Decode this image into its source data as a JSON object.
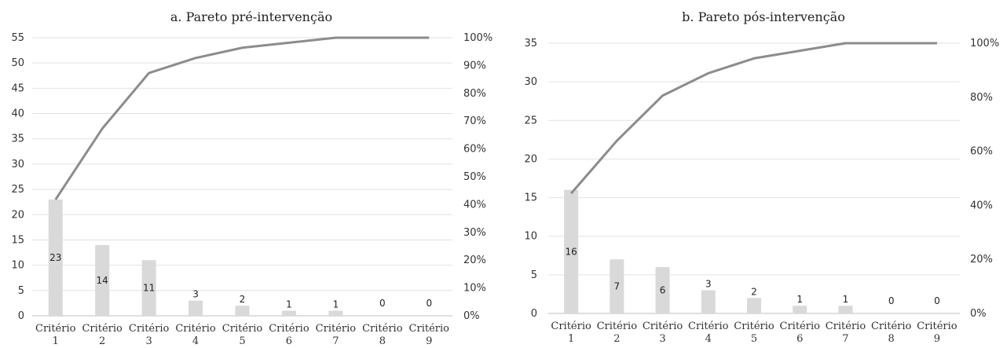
{
  "chart_data": [
    {
      "type": "bar",
      "title": "a. Pareto pré-intervenção",
      "categories": [
        "Critério 1",
        "Critério 2",
        "Critério 3",
        "Critério 4",
        "Critério 5",
        "Critério 6",
        "Critério 7",
        "Critério 8",
        "Critério 9"
      ],
      "category_lines": [
        [
          "Critério",
          "1"
        ],
        [
          "Critério",
          "2"
        ],
        [
          "Critério",
          "3"
        ],
        [
          "Critério",
          "4"
        ],
        [
          "Critério",
          "5"
        ],
        [
          "Critério",
          "6"
        ],
        [
          "Critério",
          "7"
        ],
        [
          "Critério",
          "8"
        ],
        [
          "Critério",
          "9"
        ]
      ],
      "values": [
        23,
        14,
        11,
        3,
        2,
        1,
        1,
        0,
        0
      ],
      "cumulative_percent": [
        41.8,
        67.3,
        87.3,
        92.7,
        96.4,
        98.2,
        100,
        100,
        100
      ],
      "ylim": [
        0,
        55
      ],
      "yticks": [
        "0",
        "5",
        "10",
        "15",
        "20",
        "25",
        "30",
        "35",
        "40",
        "45",
        "50",
        "55"
      ],
      "y2lim": [
        0,
        100
      ],
      "y2ticks": [
        "0%",
        "10%",
        "20%",
        "30%",
        "40%",
        "50%",
        "60%",
        "70%",
        "80%",
        "90%",
        "100%"
      ],
      "grid": true,
      "bar_color": "#d9d9d9",
      "line_color": "#8c8c8c"
    },
    {
      "type": "bar",
      "title": "b. Pareto pós-intervenção",
      "categories": [
        "Critério 1",
        "Critério 2",
        "Critério 3",
        "Critério 4",
        "Critério 5",
        "Critério 6",
        "Critério 7",
        "Critério 8",
        "Critério 9"
      ],
      "category_lines": [
        [
          "Critério",
          "1"
        ],
        [
          "Critério",
          "2"
        ],
        [
          "Critério",
          "3"
        ],
        [
          "Critério",
          "4"
        ],
        [
          "Critério",
          "5"
        ],
        [
          "Critério",
          "6"
        ],
        [
          "Critério",
          "7"
        ],
        [
          "Critério",
          "8"
        ],
        [
          "Critério",
          "9"
        ]
      ],
      "values": [
        16,
        7,
        6,
        3,
        2,
        1,
        1,
        0,
        0
      ],
      "cumulative_percent": [
        44.4,
        63.9,
        80.6,
        88.9,
        94.4,
        97.2,
        100,
        100,
        100
      ],
      "ylim": [
        0,
        35
      ],
      "yticks": [
        "0",
        "5",
        "10",
        "15",
        "20",
        "25",
        "30",
        "35"
      ],
      "y2lim": [
        0,
        100
      ],
      "y2ticks": [
        "0%",
        "20%",
        "40%",
        "60%",
        "80%",
        "100%"
      ],
      "grid": true,
      "bar_color": "#d9d9d9",
      "line_color": "#8c8c8c"
    }
  ]
}
